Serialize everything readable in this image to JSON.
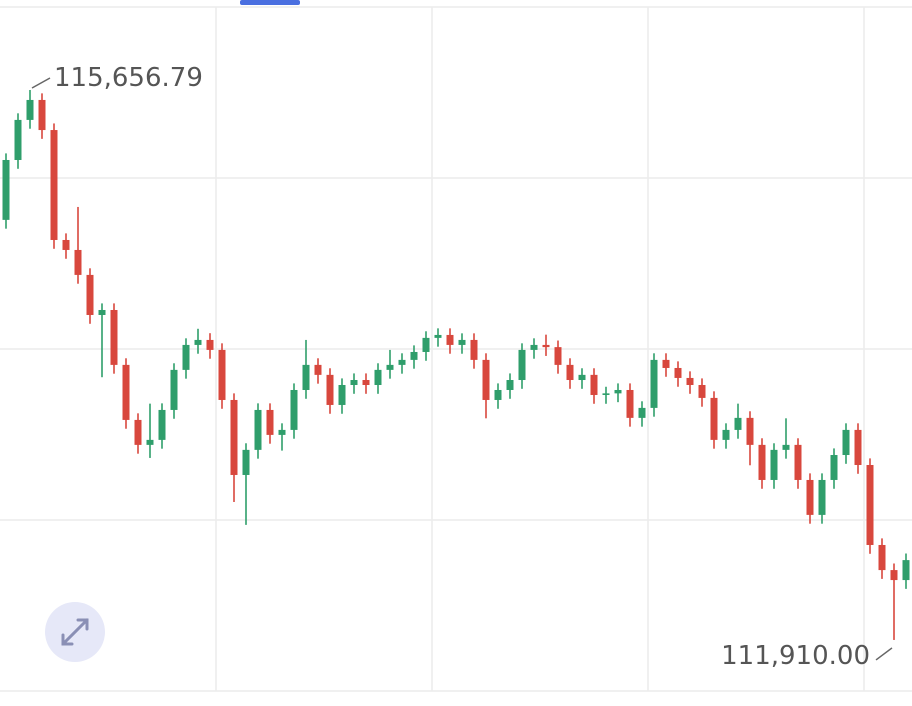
{
  "chart_data": {
    "type": "candlestick",
    "ylim": [
      111460,
      116270
    ],
    "up_color": "#2f9e6b",
    "down_color": "#d8473d",
    "open": [
      114772,
      115180,
      115453,
      115589,
      115384,
      114635,
      114567,
      114397,
      114124,
      114158,
      113784,
      113409,
      113239,
      113273,
      113477,
      113750,
      113920,
      113954,
      113886,
      113545,
      113034,
      113205,
      113477,
      113307,
      113341,
      113613,
      113784,
      113716,
      113511,
      113647,
      113681,
      113647,
      113750,
      113784,
      113818,
      113872,
      113968,
      113988,
      113920,
      113954,
      113818,
      113545,
      113613,
      113681,
      113886,
      113920,
      113905,
      113784,
      113681,
      113716,
      113579,
      113590,
      113613,
      113423,
      113491,
      113818,
      113763,
      113695,
      113647,
      113559,
      113273,
      113341,
      113423,
      113239,
      113000,
      113205,
      113239,
      113000,
      112762,
      113000,
      113170,
      113341,
      113102,
      112557,
      112386,
      112318
    ],
    "high": [
      115225,
      115498,
      115656.79,
      115634,
      115429,
      114680,
      114860,
      114442,
      114203,
      114203,
      113829,
      113454,
      113520,
      113522,
      113795,
      113965,
      114030,
      114000,
      113931,
      113590,
      113250,
      113522,
      113522,
      113386,
      113658,
      113954,
      113829,
      113761,
      113692,
      113726,
      113726,
      113795,
      113886,
      113863,
      113917,
      114013,
      114033,
      114033,
      113999,
      113999,
      113863,
      113658,
      113726,
      113931,
      113965,
      113990,
      113950,
      113829,
      113761,
      113761,
      113635,
      113658,
      113658,
      113536,
      113863,
      113863,
      113808,
      113740,
      113692,
      113604,
      113386,
      113520,
      113468,
      113284,
      113250,
      113420,
      113284,
      113045,
      113045,
      113215,
      113386,
      113386,
      113147,
      112602,
      112431,
      112499
    ],
    "low": [
      114712,
      115120,
      115393,
      115324,
      114575,
      114507,
      114337,
      114064,
      113700,
      113724,
      113349,
      113179,
      113150,
      113213,
      113417,
      113690,
      113860,
      113826,
      113485,
      112850,
      112694,
      113145,
      113247,
      113200,
      113281,
      113553,
      113656,
      113451,
      113451,
      113587,
      113587,
      113587,
      113690,
      113724,
      113758,
      113812,
      113908,
      113860,
      113860,
      113758,
      113420,
      113485,
      113553,
      113621,
      113826,
      113845,
      113724,
      113621,
      113621,
      113519,
      113519,
      113530,
      113363,
      113363,
      113431,
      113703,
      113635,
      113587,
      113499,
      113213,
      113213,
      113281,
      113100,
      112940,
      112940,
      113145,
      112940,
      112702,
      112702,
      112940,
      113110,
      113042,
      112497,
      112326,
      111910.0,
      112258
    ],
    "close": [
      115180,
      115453,
      115589,
      115384,
      114635,
      114567,
      114397,
      114124,
      114158,
      113784,
      113409,
      113239,
      113273,
      113477,
      113750,
      113920,
      113954,
      113886,
      113545,
      113034,
      113205,
      113477,
      113307,
      113341,
      113613,
      113784,
      113716,
      113511,
      113647,
      113681,
      113647,
      113750,
      113784,
      113818,
      113872,
      113968,
      113988,
      113920,
      113954,
      113818,
      113545,
      113613,
      113681,
      113886,
      113920,
      113905,
      113784,
      113681,
      113716,
      113579,
      113590,
      113613,
      113423,
      113491,
      113818,
      113763,
      113695,
      113647,
      113559,
      113273,
      113341,
      113423,
      113239,
      113000,
      113205,
      113239,
      113000,
      112762,
      113000,
      113170,
      113341,
      113102,
      112557,
      112386,
      112318,
      112454
    ],
    "annotations": [
      {
        "value": 115656.79,
        "label": "115,656.79"
      },
      {
        "value": 111910.0,
        "label": "111,910.00"
      }
    ]
  }
}
